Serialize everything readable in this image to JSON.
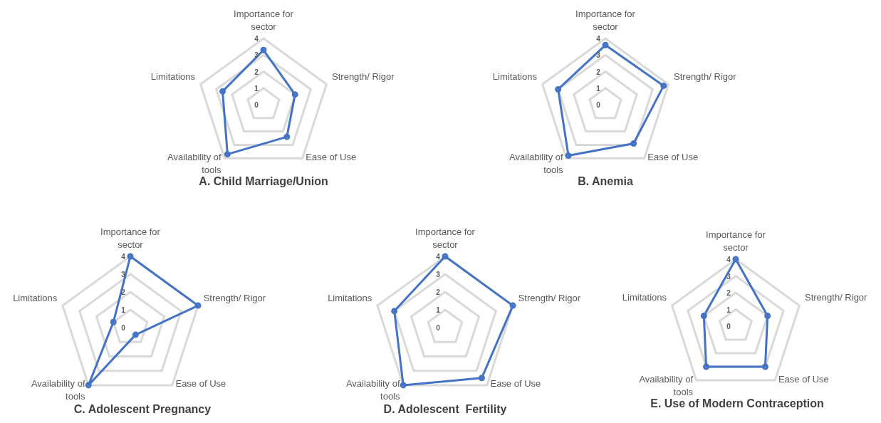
{
  "chart_data": [
    {
      "type": "radar",
      "title": "A. Child Marriage/Union",
      "categories": [
        "Importance for sector",
        "Strength/ Rigor",
        "Ease of Use",
        "Availability of tools",
        "Limitations"
      ],
      "series": [
        {
          "color": "#4472c4",
          "values": [
            3.3,
            2,
            2.4,
            3.7,
            2.6
          ]
        }
      ],
      "ylim": [
        0,
        4
      ],
      "yticks": [
        0,
        1,
        2,
        3,
        4
      ],
      "grid": true,
      "marker": "circle"
    },
    {
      "type": "radar",
      "title": "B. Anemia",
      "categories": [
        "Importance for sector",
        "Strength/ Rigor",
        "Ease of Use",
        "Availability of tools",
        "Limitations"
      ],
      "series": [
        {
          "color": "#4472c4",
          "values": [
            3.6,
            3.7,
            2.9,
            3.8,
            3
          ]
        }
      ],
      "ylim": [
        0,
        4
      ],
      "yticks": [
        0,
        1,
        2,
        3,
        4
      ],
      "grid": true,
      "marker": "circle"
    },
    {
      "type": "radar",
      "title": "C. Adolescent Pregnancy",
      "categories": [
        "Importance for sector",
        "Strength/ Rigor",
        "Ease of Use",
        "Availability of tools",
        "Limitations"
      ],
      "series": [
        {
          "color": "#4472c4",
          "values": [
            4,
            4,
            0.5,
            4,
            1
          ]
        }
      ],
      "ylim": [
        0,
        4
      ],
      "yticks": [
        0,
        1,
        2,
        3,
        4
      ],
      "grid": true,
      "marker": "circle"
    },
    {
      "type": "radar",
      "title": "D. Adolescent  Fertility",
      "categories": [
        "Importance for sector",
        "Strength/ Rigor",
        "Ease of Use",
        "Availability of tools",
        "Limitations"
      ],
      "series": [
        {
          "color": "#4472c4",
          "values": [
            4,
            4,
            3.5,
            4,
            3
          ]
        }
      ],
      "ylim": [
        0,
        4
      ],
      "yticks": [
        0,
        1,
        2,
        3,
        4
      ],
      "grid": true,
      "marker": "circle"
    },
    {
      "type": "radar",
      "title": "E. Use of Modern Contraception",
      "categories": [
        "Importance for sector",
        "Strength/ Rigor",
        "Ease of Use",
        "Availability of tools",
        "Limitations"
      ],
      "series": [
        {
          "color": "#4472c4",
          "values": [
            4,
            2,
            3,
            3,
            2
          ]
        }
      ],
      "ylim": [
        0,
        4
      ],
      "yticks": [
        0,
        1,
        2,
        3,
        4
      ],
      "grid": true,
      "marker": "circle"
    }
  ]
}
